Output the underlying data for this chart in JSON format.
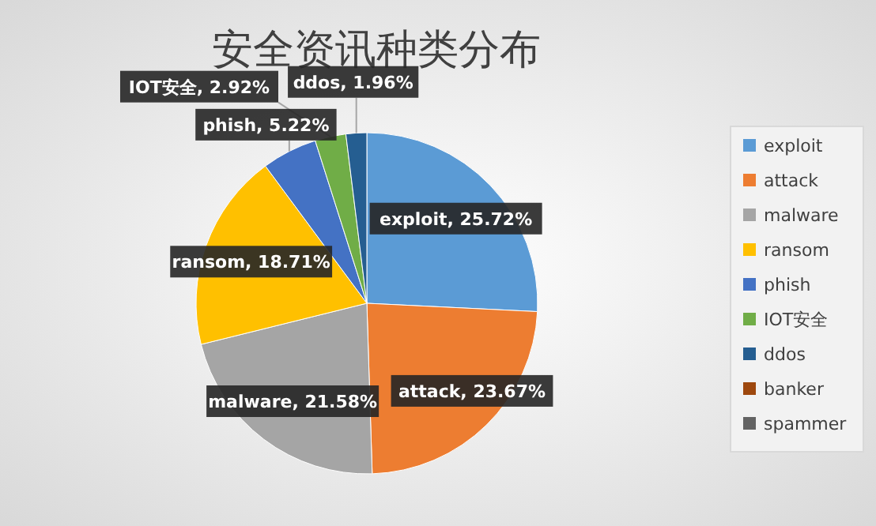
{
  "chart_data": {
    "type": "pie",
    "title": "安全资讯种类分布",
    "categories": [
      "exploit",
      "attack",
      "malware",
      "ransom",
      "phish",
      "IOT安全",
      "ddos",
      "banker",
      "spammer"
    ],
    "values": [
      25.72,
      23.67,
      21.58,
      18.71,
      5.22,
      2.92,
      1.96,
      null,
      null
    ],
    "colors": [
      "#5b9bd5",
      "#ed7d31",
      "#a5a5a5",
      "#ffc000",
      "#4472c4",
      "#70ad47",
      "#255e91",
      "#9e480e",
      "#636363"
    ],
    "value_labels": [
      "exploit, 25.72%",
      "attack, 23.67%",
      "malware, 21.58%",
      "ransom, 18.71%",
      "phish, 5.22%",
      "IOT安全, 2.92%",
      "ddos, 1.96%",
      null,
      null
    ],
    "legend": "right"
  }
}
